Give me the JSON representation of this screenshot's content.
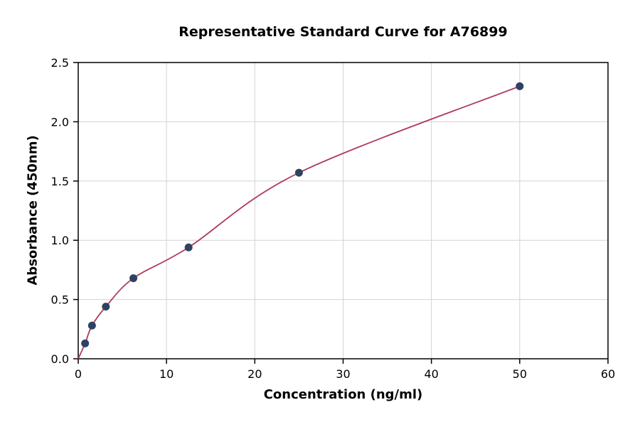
{
  "chart_data": {
    "type": "scatter",
    "title": "Representative Standard Curve for A76899",
    "xlabel": "Concentration (ng/ml)",
    "ylabel": "Absorbance (450nm)",
    "xlim": [
      0,
      60
    ],
    "ylim": [
      0,
      2.5
    ],
    "x_ticks": [
      0,
      10,
      20,
      30,
      40,
      50,
      60
    ],
    "x_tick_labels": [
      "0",
      "10",
      "20",
      "30",
      "40",
      "50",
      "60"
    ],
    "y_ticks": [
      0.0,
      0.5,
      1.0,
      1.5,
      2.0,
      2.5
    ],
    "y_tick_labels": [
      "0.0",
      "0.5",
      "1.0",
      "1.5",
      "2.0",
      "2.5"
    ],
    "grid": true,
    "legend": "none",
    "points": [
      [
        0.78,
        0.13
      ],
      [
        1.56,
        0.28
      ],
      [
        3.13,
        0.44
      ],
      [
        6.25,
        0.68
      ],
      [
        12.5,
        0.94
      ],
      [
        25,
        1.57
      ],
      [
        50,
        2.3
      ]
    ],
    "curve_start": [
      0,
      0
    ],
    "colors": {
      "point": "#2e4262",
      "curve": "#b03a5b",
      "grid": "#d3d3d3",
      "axis": "#000000",
      "background": "#ffffff"
    }
  }
}
